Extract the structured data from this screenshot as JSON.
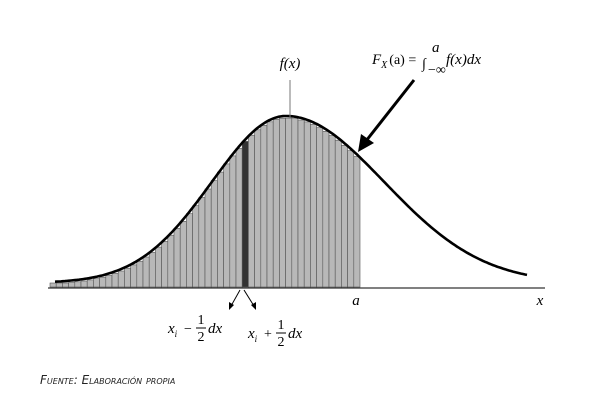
{
  "diagram": {
    "density_label": "f(x)",
    "formula": {
      "F": "F",
      "sub": "X",
      "arg": "(a) =",
      "integral": "∫",
      "upper": "a",
      "lower": "−∞",
      "integrand": "f(x)dx"
    },
    "a_label": "a",
    "x_label": "x",
    "left_bound": {
      "x": "x",
      "i": "i",
      "op": "−",
      "num": "1",
      "den": "2",
      "dx": "dx"
    },
    "right_bound": {
      "x": "x",
      "i": "i",
      "op": "+",
      "num": "1",
      "den": "2",
      "dx": "dx"
    },
    "source": "Fuente: Elaboración propia"
  }
}
